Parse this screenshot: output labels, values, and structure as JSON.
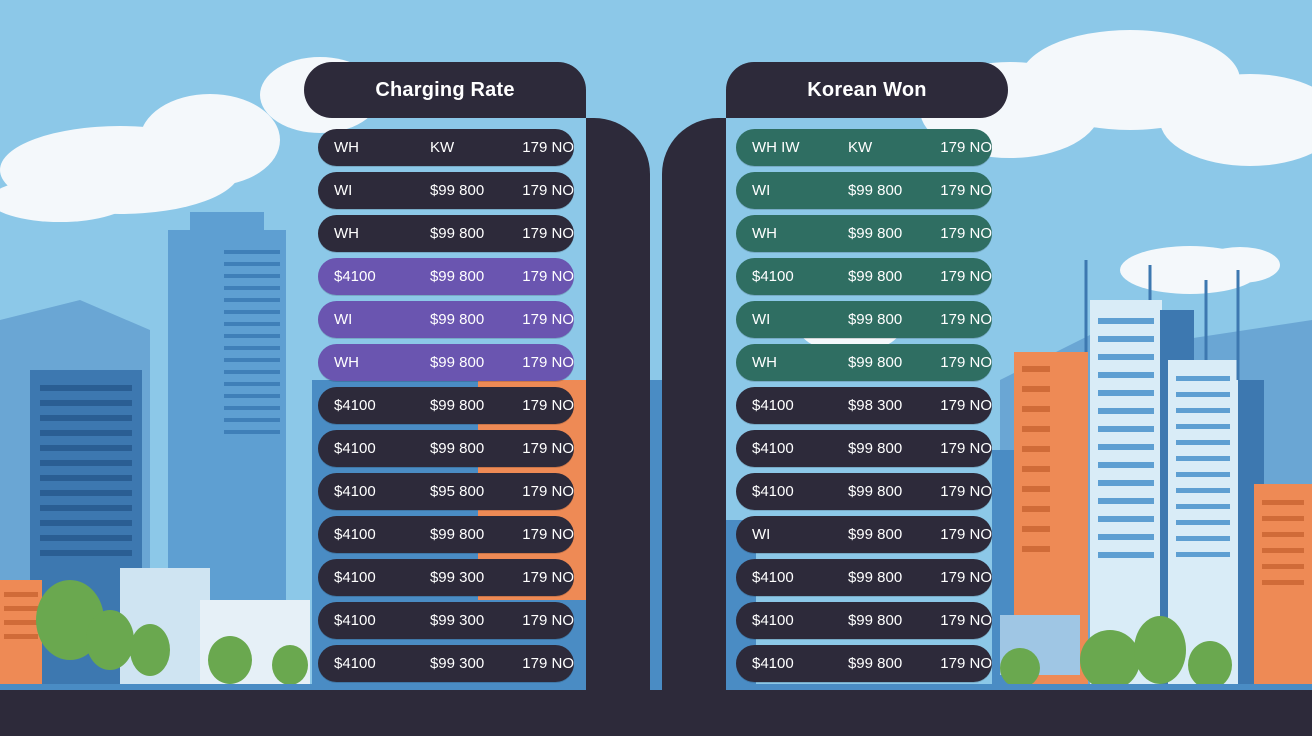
{
  "left_panel": {
    "title": "Charging Rate",
    "rows": [
      {
        "c1": "WH",
        "c2": "KW",
        "c3": "179 NO",
        "style": "dark"
      },
      {
        "c1": "WI",
        "c2": "$99 800",
        "c3": "179 NO",
        "style": "dark"
      },
      {
        "c1": "WH",
        "c2": "$99 800",
        "c3": "179 NO",
        "style": "dark"
      },
      {
        "c1": "$4100",
        "c2": "$99 800",
        "c3": "179 NO",
        "style": "purple"
      },
      {
        "c1": "WI",
        "c2": "$99 800",
        "c3": "179 NO",
        "style": "purple"
      },
      {
        "c1": "WH",
        "c2": "$99 800",
        "c3": "179 NO",
        "style": "purple"
      },
      {
        "c1": "$4100",
        "c2": "$99 800",
        "c3": "179 NO",
        "style": "dark"
      },
      {
        "c1": "$4100",
        "c2": "$99 800",
        "c3": "179 NO",
        "style": "dark"
      },
      {
        "c1": "$4100",
        "c2": "$95 800",
        "c3": "179 NO",
        "style": "dark"
      },
      {
        "c1": "$4100",
        "c2": "$99 800",
        "c3": "179 NO",
        "style": "dark"
      },
      {
        "c1": "$4100",
        "c2": "$99 300",
        "c3": "179 NO",
        "style": "dark"
      },
      {
        "c1": "$4100",
        "c2": "$99 300",
        "c3": "179 NO",
        "style": "dark"
      },
      {
        "c1": "$4100",
        "c2": "$99 300",
        "c3": "179 NO",
        "style": "dark"
      }
    ]
  },
  "right_panel": {
    "title": "Korean Won",
    "rows": [
      {
        "c1": "WH IW",
        "c2": "KW",
        "c3": "179 NO",
        "style": "green"
      },
      {
        "c1": "WI",
        "c2": "$99 800",
        "c3": "179 NO",
        "style": "green"
      },
      {
        "c1": "WH",
        "c2": "$99 800",
        "c3": "179 NO",
        "style": "green"
      },
      {
        "c1": "$4100",
        "c2": "$99 800",
        "c3": "179 NO",
        "style": "green"
      },
      {
        "c1": "WI",
        "c2": "$99 800",
        "c3": "179 NO",
        "style": "green"
      },
      {
        "c1": "WH",
        "c2": "$99 800",
        "c3": "179 NO",
        "style": "green"
      },
      {
        "c1": "$4100",
        "c2": "$98 300",
        "c3": "179 NO",
        "style": "dark"
      },
      {
        "c1": "$4100",
        "c2": "$99 800",
        "c3": "179 NO",
        "style": "dark"
      },
      {
        "c1": "$4100",
        "c2": "$99 800",
        "c3": "179 NO",
        "style": "dark"
      },
      {
        "c1": "WI",
        "c2": "$99 800",
        "c3": "179 NO",
        "style": "dark"
      },
      {
        "c1": "$4100",
        "c2": "$99 800",
        "c3": "179 NO",
        "style": "dark"
      },
      {
        "c1": "$4100",
        "c2": "$99 800",
        "c3": "179 NO",
        "style": "dark"
      },
      {
        "c1": "$4100",
        "c2": "$99 800",
        "c3": "179 NO",
        "style": "dark"
      }
    ]
  },
  "colors": {
    "sky": "#8cc8e8",
    "panel_dark": "#2d2a3a",
    "row_purple": "#6a55b0",
    "row_green": "#2f6e62",
    "building_blue": "#4a8cc4",
    "building_orange": "#ee8a55",
    "tree_green": "#6aa84f"
  }
}
